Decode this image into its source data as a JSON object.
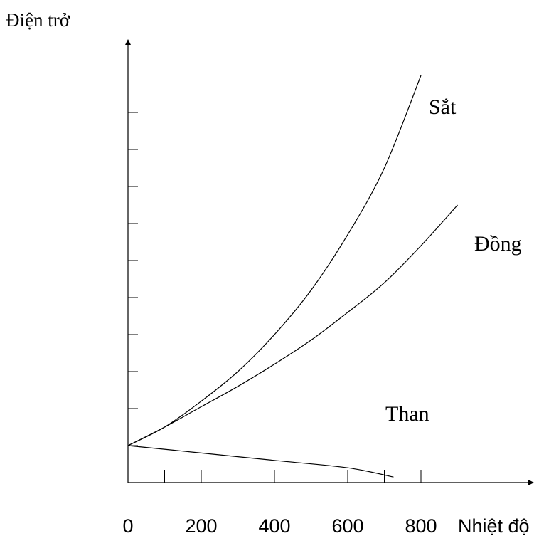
{
  "chart_data": {
    "type": "line",
    "title": "",
    "ylabel": "Điện trở",
    "xlabel": "Nhiệt độ",
    "x_ticks": [
      0,
      200,
      400,
      600,
      800
    ],
    "xlim": [
      0,
      1080
    ],
    "ylim": [
      0,
      11
    ],
    "y_tick_count": 10,
    "y_ticks_shown": false,
    "grid": false,
    "series": [
      {
        "name": "Sắt",
        "x": [
          0,
          100,
          200,
          300,
          400,
          500,
          600,
          700,
          800
        ],
        "y": [
          1.0,
          1.5,
          2.2,
          3.0,
          4.0,
          5.2,
          6.7,
          8.5,
          11.0
        ]
      },
      {
        "name": "Đồng",
        "x": [
          0,
          100,
          200,
          300,
          400,
          500,
          600,
          700,
          800,
          900
        ],
        "y": [
          1.0,
          1.5,
          2.05,
          2.6,
          3.2,
          3.85,
          4.6,
          5.4,
          6.4,
          7.5
        ]
      },
      {
        "name": "Than",
        "x": [
          0,
          200,
          400,
          600,
          725
        ],
        "y": [
          1.0,
          0.8,
          0.6,
          0.4,
          0.15
        ]
      }
    ],
    "colors": {
      "lines": "#000000",
      "background": "#ffffff"
    }
  }
}
